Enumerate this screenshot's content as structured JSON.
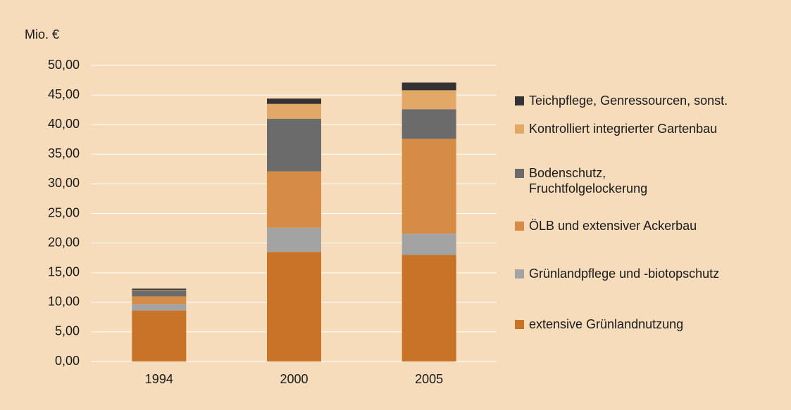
{
  "chart_data": {
    "type": "stacked_bar",
    "ylabel": "Mio. €",
    "categories": [
      "1994",
      "2000",
      "2005"
    ],
    "series": [
      {
        "name": "extensive Grünlandnutzung",
        "color": "#c87328",
        "values": [
          8.6,
          18.5,
          18.0
        ]
      },
      {
        "name": "Grünlandpflege und -biotopschutz",
        "color": "#a3a3a3",
        "values": [
          1.1,
          4.1,
          3.6
        ]
      },
      {
        "name": "ÖLB und extensiver Ackerbau",
        "color": "#d58c45",
        "values": [
          1.3,
          9.5,
          16.0
        ]
      },
      {
        "name": "Bodenschutz, Fruchtfolgelockerung",
        "color": "#6b6b6b",
        "values": [
          1.0,
          8.9,
          5.0
        ]
      },
      {
        "name": "Kontrolliert integrierter Gartenbau",
        "color": "#e2a867",
        "values": [
          0.1,
          2.5,
          3.2
        ]
      },
      {
        "name": "Teichpflege, Genressourcen, sonst.",
        "color": "#333333",
        "values": [
          0.2,
          0.9,
          1.3
        ]
      }
    ],
    "ylim": [
      0,
      50
    ],
    "yticks": [
      {
        "value": 0,
        "label": "0,00"
      },
      {
        "value": 5,
        "label": "5,00"
      },
      {
        "value": 10,
        "label": "10,00"
      },
      {
        "value": 15,
        "label": "15,00"
      },
      {
        "value": 20,
        "label": "20,00"
      },
      {
        "value": 25,
        "label": "25,00"
      },
      {
        "value": 30,
        "label": "30,00"
      },
      {
        "value": 35,
        "label": "35,00"
      },
      {
        "value": 40,
        "label": "40,00"
      },
      {
        "value": 45,
        "label": "45,00"
      },
      {
        "value": 50,
        "label": "50,00"
      }
    ],
    "grid": true,
    "legend": "right"
  }
}
